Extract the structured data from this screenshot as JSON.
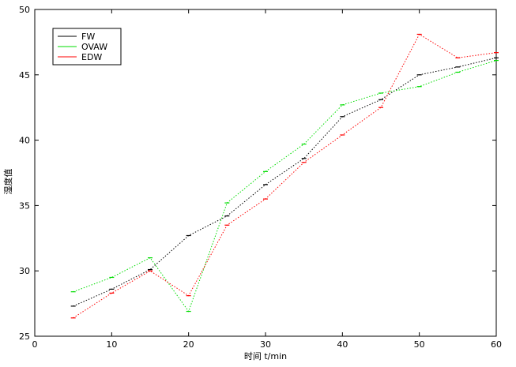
{
  "chart_data": {
    "type": "line",
    "x_label": "时间 t/min",
    "y_label": "湿度值",
    "x": [
      5,
      10,
      15,
      20,
      25,
      30,
      35,
      40,
      45,
      50,
      55,
      60
    ],
    "series": [
      {
        "name": "FW",
        "color": "#000000",
        "values": [
          27.3,
          28.6,
          30.1,
          32.7,
          34.2,
          36.6,
          38.6,
          41.8,
          43.1,
          45.0,
          45.6,
          46.3
        ]
      },
      {
        "name": "OVAW",
        "color": "#00dd00",
        "values": [
          28.4,
          29.5,
          31.0,
          26.9,
          35.2,
          37.6,
          39.7,
          42.7,
          43.6,
          44.1,
          45.2,
          46.1
        ]
      },
      {
        "name": "EDW",
        "color": "#ff0000",
        "values": [
          26.4,
          28.3,
          30.0,
          28.1,
          33.5,
          35.5,
          38.3,
          40.4,
          42.5,
          48.1,
          46.3,
          46.7
        ]
      }
    ],
    "xlim": [
      0,
      60
    ],
    "xticks": [
      0,
      10,
      20,
      30,
      40,
      50,
      60
    ],
    "ylim": [
      25,
      50
    ],
    "yticks": [
      25,
      30,
      35,
      40,
      45,
      50
    ],
    "legend": "upper left"
  }
}
